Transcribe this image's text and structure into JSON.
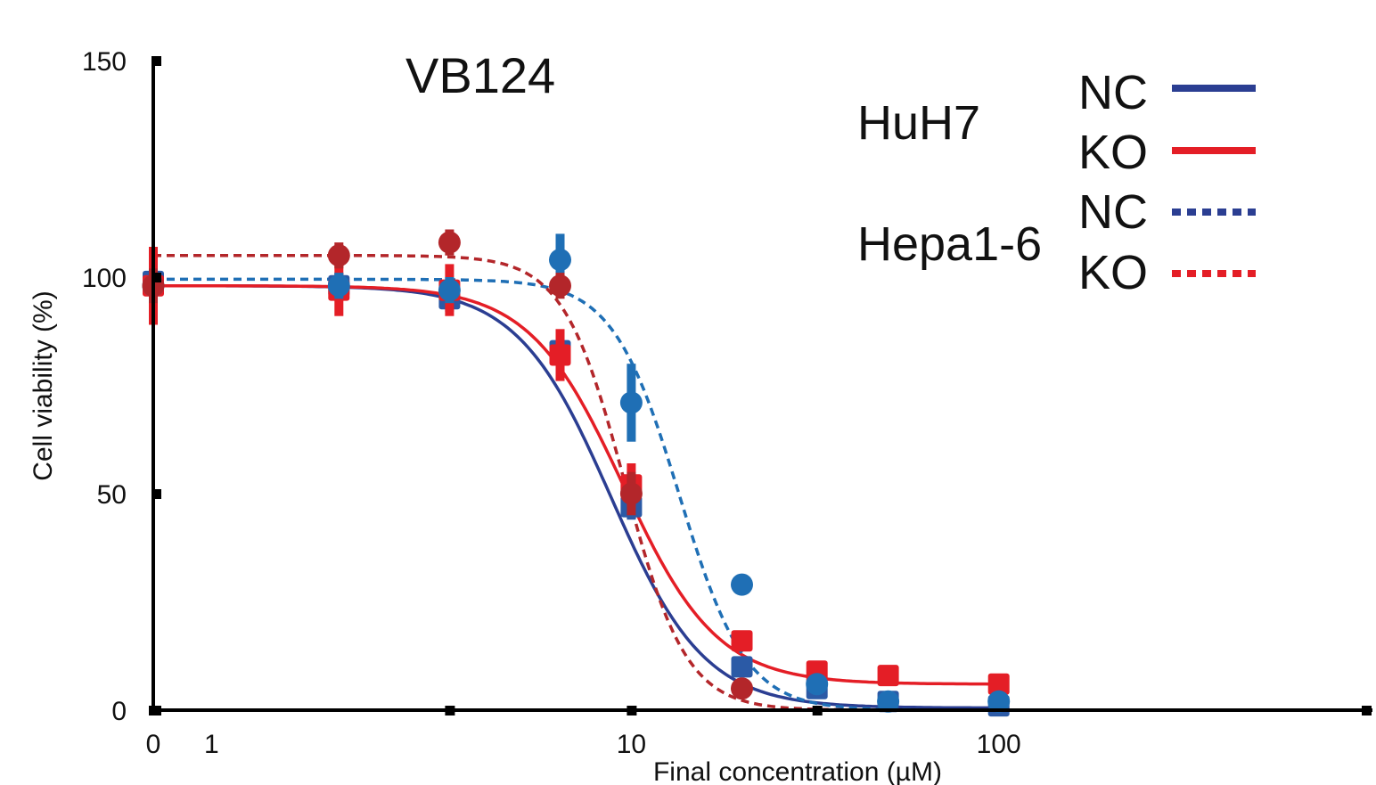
{
  "chart_data": {
    "type": "scatter",
    "title": "VB124",
    "xlabel": "Final concentration (µM)",
    "ylabel": "Cell viability (%)",
    "xscale": "log",
    "xlim": [
      0.5,
      1000
    ],
    "ylim": [
      0,
      150
    ],
    "x_ticks": [
      {
        "value": 0.5,
        "label": "0"
      },
      {
        "value": 0.72,
        "label": "1"
      },
      {
        "value": 10,
        "label": "10"
      },
      {
        "value": 100,
        "label": "100"
      }
    ],
    "x_minor_ticks": [
      0.5,
      3.2,
      10,
      32,
      1000
    ],
    "y_ticks": [
      {
        "value": 0,
        "label": "0"
      },
      {
        "value": 50,
        "label": "50"
      },
      {
        "value": 100,
        "label": "100"
      },
      {
        "value": 150,
        "label": "150"
      }
    ],
    "legend": {
      "groups": [
        {
          "label": "HuH7",
          "entries": [
            {
              "label": "NC",
              "color": "#2b3e92",
              "style": "solid"
            },
            {
              "label": "KO",
              "color": "#e41e26",
              "style": "solid"
            }
          ]
        },
        {
          "label": "Hepa1-6",
          "entries": [
            {
              "label": "NC",
              "color": "#2b3e92",
              "style": "dotted"
            },
            {
              "label": "KO",
              "color": "#e41e26",
              "style": "dotted"
            }
          ]
        }
      ],
      "position": "top-right"
    },
    "series": [
      {
        "name": "HuH7 NC",
        "color": "#2b5aa6",
        "marker": "square",
        "line": "solid",
        "line_color": "#2b3e92",
        "x": [
          0.5,
          1.6,
          3.2,
          6.4,
          10,
          20,
          32,
          50,
          100
        ],
        "y": [
          99,
          98,
          95,
          83,
          47,
          10,
          5,
          2,
          1
        ],
        "err": [
          3,
          3,
          3,
          4,
          3,
          2,
          1,
          1,
          1
        ],
        "fit": {
          "bottom": 0.5,
          "top": 98,
          "ic50": 8.8,
          "hill": 3.4
        }
      },
      {
        "name": "HuH7 KO",
        "color": "#e41e26",
        "marker": "square",
        "line": "solid",
        "line_color": "#e41e26",
        "x": [
          0.5,
          1.6,
          3.2,
          6.4,
          10,
          20,
          32,
          50,
          100
        ],
        "y": [
          98,
          97,
          97,
          82,
          52,
          16,
          9,
          8,
          6
        ],
        "err": [
          9,
          6,
          6,
          6,
          5,
          2,
          1,
          1,
          1
        ],
        "fit": {
          "bottom": 6,
          "top": 98,
          "ic50": 9.5,
          "hill": 3.4
        }
      },
      {
        "name": "Hepa1-6 NC",
        "color": "#1f6fb5",
        "marker": "circle",
        "line": "dashed",
        "line_color": "#1f6fb5",
        "x": [
          0.5,
          1.6,
          3.2,
          6.4,
          10,
          20,
          32,
          50,
          100
        ],
        "y": [
          98,
          98,
          97,
          104,
          71,
          29,
          6,
          2,
          2
        ],
        "err": [
          3,
          3,
          3,
          6,
          9,
          1,
          1,
          1,
          1
        ],
        "fit": {
          "bottom": 0,
          "top": 99.5,
          "ic50": 13.5,
          "hill": 4.8
        }
      },
      {
        "name": "Hepa1-6 KO",
        "color": "#b3262a",
        "marker": "circle",
        "line": "dashed",
        "line_color": "#b3262a",
        "x": [
          0.5,
          1.6,
          3.2,
          6.4,
          10,
          20
        ],
        "y": [
          98,
          105,
          108,
          98,
          50,
          5
        ],
        "err": [
          4,
          3,
          3,
          3,
          5,
          1
        ],
        "fit": {
          "bottom": 0,
          "top": 105,
          "ic50": 9.6,
          "hill": 5.2
        }
      }
    ]
  }
}
